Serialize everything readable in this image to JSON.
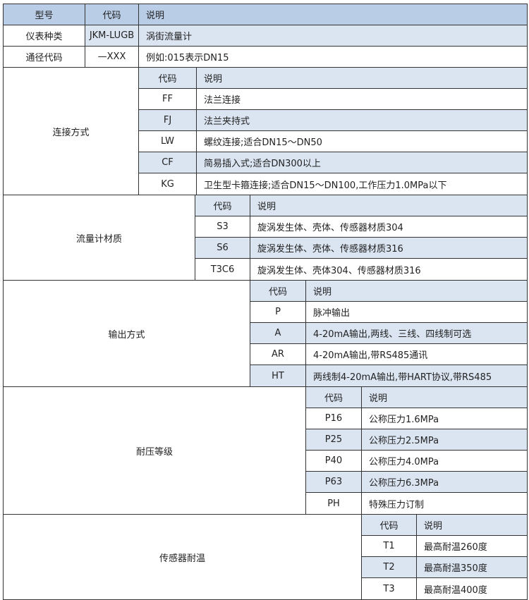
{
  "header": {
    "model": "型号",
    "code": "代码",
    "desc": "说明"
  },
  "top_rows": [
    {
      "label": "仪表种类",
      "code": "JKM-LUGB",
      "desc": "涡街流量计"
    },
    {
      "label": "通径代码",
      "code": "—XXX",
      "desc": "例如:015表示DN15"
    }
  ],
  "colors": {
    "header": "#b9cde6",
    "row_highlight": "#dbe5f2",
    "border": "#333333"
  },
  "sections": [
    {
      "label": "连接方式",
      "code_header": "代码",
      "desc_header": "说明",
      "rows": [
        {
          "code": "FF",
          "desc": "法兰连接"
        },
        {
          "code": "FJ",
          "desc": "法兰夹持式"
        },
        {
          "code": "LW",
          "desc": "螺纹连接;适合DN15～DN50"
        },
        {
          "code": "CF",
          "desc": "简易插入式;适合DN300以上"
        },
        {
          "code": "KG",
          "desc": "卫生型卡箍连接;适合DN15～DN100,工作压力1.0MPa以下"
        }
      ]
    },
    {
      "label": "流量计材质",
      "code_header": "代码",
      "desc_header": "说明",
      "rows": [
        {
          "code": "S3",
          "desc": "旋涡发生体、壳体、传感器材质304"
        },
        {
          "code": "S6",
          "desc": "旋涡发生体、壳体、传感器材质316"
        },
        {
          "code": "T3C6",
          "desc": "旋涡发生体、壳体304、传感器材质316"
        }
      ]
    },
    {
      "label": "输出方式",
      "code_header": "代码",
      "desc_header": "说明",
      "rows": [
        {
          "code": "P",
          "desc": "脉冲输出"
        },
        {
          "code": "A",
          "desc": "4-20mA输出,两线、三线、四线制可选"
        },
        {
          "code": "AR",
          "desc": "4-20mA输出,带RS485通讯"
        },
        {
          "code": "HT",
          "desc": "两线制4-20mA输出,带HART协议,带RS485"
        }
      ]
    },
    {
      "label": "耐压等级",
      "code_header": "代码",
      "desc_header": "说明",
      "rows": [
        {
          "code": "P16",
          "desc": "公称压力1.6MPa"
        },
        {
          "code": "P25",
          "desc": "公称压力2.5MPa"
        },
        {
          "code": "P40",
          "desc": "公称压力4.0MPa"
        },
        {
          "code": "P63",
          "desc": "公称压力6.3MPa"
        },
        {
          "code": "PH",
          "desc": "特殊压力订制"
        }
      ]
    },
    {
      "label": "传感器耐温",
      "code_header": "代码",
      "desc_header": "说明",
      "rows": [
        {
          "code": "T1",
          "desc": "最高耐温260度"
        },
        {
          "code": "T2",
          "desc": "最高耐温350度"
        },
        {
          "code": "T3",
          "desc": "最高耐温400度"
        }
      ]
    }
  ]
}
